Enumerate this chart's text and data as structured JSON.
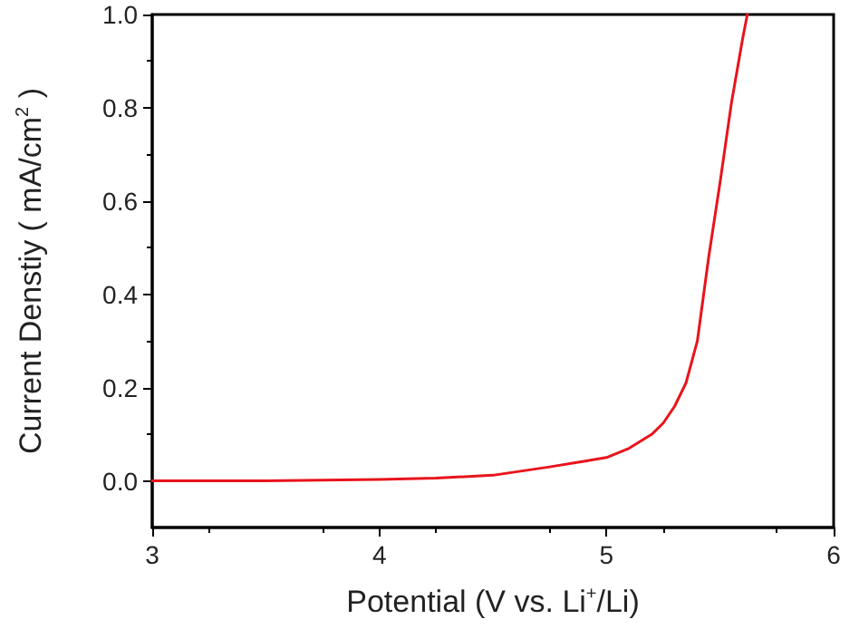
{
  "chart_data": {
    "type": "line",
    "xlabel": "Potential (V vs. Li$^{+}$/Li)",
    "ylabel": "Current Denstiy ( mA/cm$^{2}$ )",
    "x": [
      3,
      3.5,
      4,
      4.25,
      4.5,
      4.75,
      4.9,
      5,
      5.1,
      5.2,
      5.25,
      5.3,
      5.35,
      5.4,
      5.45,
      5.5,
      5.55,
      5.6,
      5.62
    ],
    "series": [
      {
        "color": "#e8141c",
        "values": [
          0,
          0,
          0.003,
          0.006,
          0.012,
          0.03,
          0.042,
          0.05,
          0.07,
          0.1,
          0.124,
          0.16,
          0.21,
          0.3,
          0.48,
          0.64,
          0.81,
          0.95,
          1.0
        ]
      }
    ],
    "xlim": [
      3,
      6
    ],
    "xticks": [
      3,
      4,
      5,
      6
    ],
    "ylim": [
      -0.1,
      1.0
    ],
    "yticks": [
      {
        "value": 0,
        "label": "0.0"
      },
      0.2,
      0.4,
      0.6,
      0.8,
      {
        "value": 1,
        "label": "1.0"
      }
    ],
    "grid": false,
    "marker": "none",
    "line_style": "solid"
  }
}
